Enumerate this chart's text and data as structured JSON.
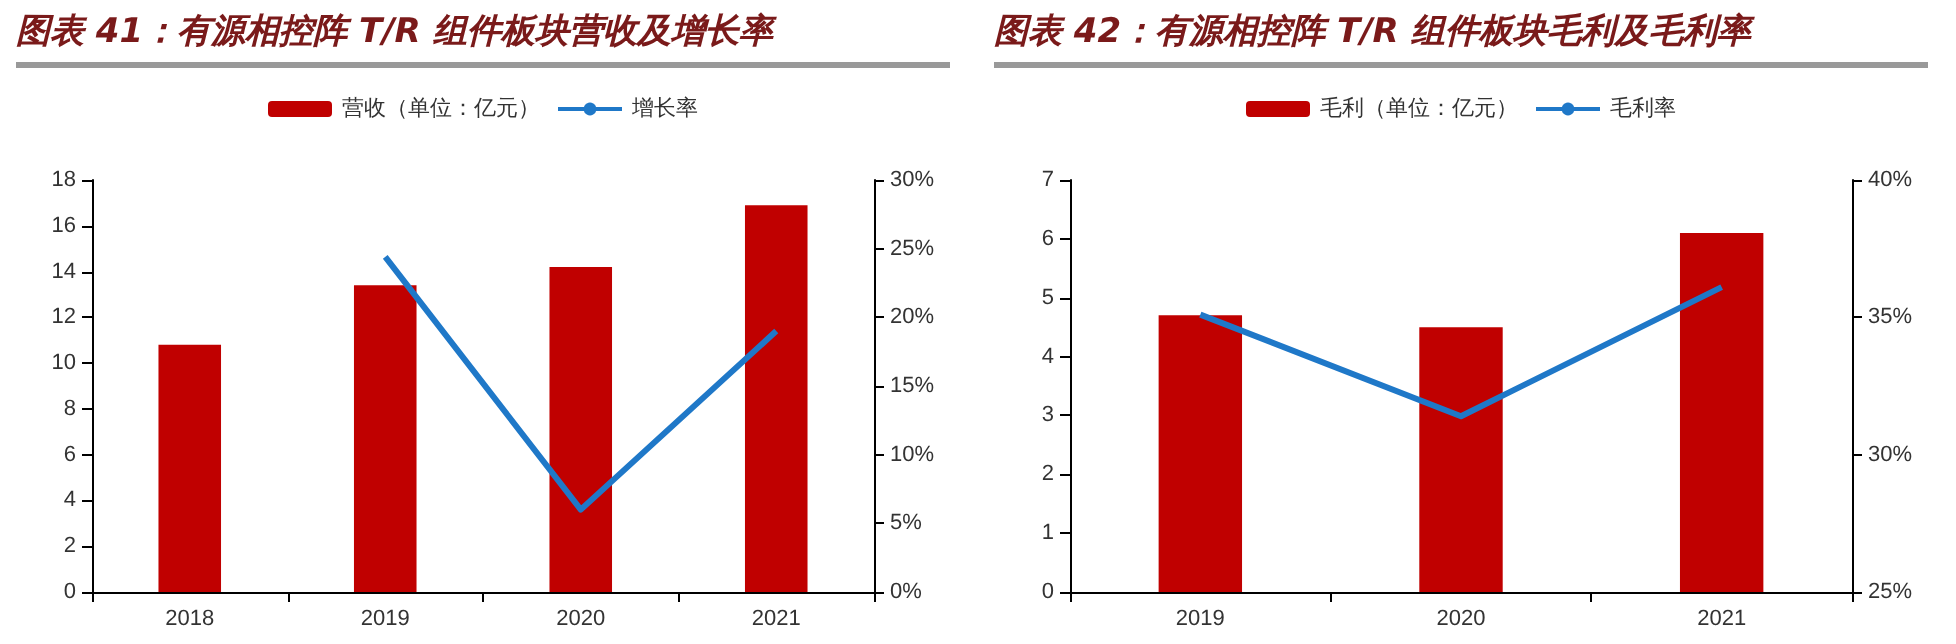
{
  "chart_data": [
    {
      "type": "bar",
      "title": "图表 41：有源相控阵 T/R 组件板块营收及增长率",
      "categories": [
        "2018",
        "2019",
        "2020",
        "2021"
      ],
      "series": [
        {
          "name": "营收（单位：亿元）",
          "color": "#c00000",
          "values": [
            10.8,
            13.4,
            14.2,
            16.9
          ]
        },
        {
          "name": "增长率",
          "type": "line",
          "axis": "y2",
          "color": "#1f78c8",
          "values": [
            null,
            24.4,
            6.0,
            19.0
          ]
        }
      ],
      "ylim": [
        0,
        18
      ],
      "yticks": [
        0,
        2,
        4,
        6,
        8,
        10,
        12,
        14,
        16,
        18
      ],
      "y2lim": [
        0,
        30
      ],
      "y2ticks": [
        {
          "value": 0,
          "label": "0%"
        },
        {
          "value": 5,
          "label": "5%"
        },
        {
          "value": 10,
          "label": "10%"
        },
        {
          "value": 15,
          "label": "15%"
        },
        {
          "value": 20,
          "label": "20%"
        },
        {
          "value": 25,
          "label": "25%"
        },
        {
          "value": 30,
          "label": "30%"
        }
      ],
      "legend": "top",
      "grid": false,
      "marker": "none"
    },
    {
      "type": "bar",
      "title": "图表 42：有源相控阵 T/R 组件板块毛利及毛利率",
      "categories": [
        "2019",
        "2020",
        "2021"
      ],
      "series": [
        {
          "name": "毛利（单位：亿元）",
          "color": "#c00000",
          "values": [
            4.7,
            4.5,
            6.1
          ]
        },
        {
          "name": "毛利率",
          "type": "line",
          "axis": "y2",
          "color": "#1f78c8",
          "values": [
            35.1,
            31.4,
            36.1
          ]
        }
      ],
      "ylim": [
        0,
        7
      ],
      "yticks": [
        0,
        1,
        2,
        3,
        4,
        5,
        6,
        7
      ],
      "y2lim": [
        25,
        40
      ],
      "y2ticks": [
        {
          "value": 25,
          "label": "25%"
        },
        {
          "value": 30,
          "label": "30%"
        },
        {
          "value": 35,
          "label": "35%"
        },
        {
          "value": 40,
          "label": "40%"
        }
      ],
      "legend": "top",
      "grid": false,
      "marker": "none"
    }
  ]
}
